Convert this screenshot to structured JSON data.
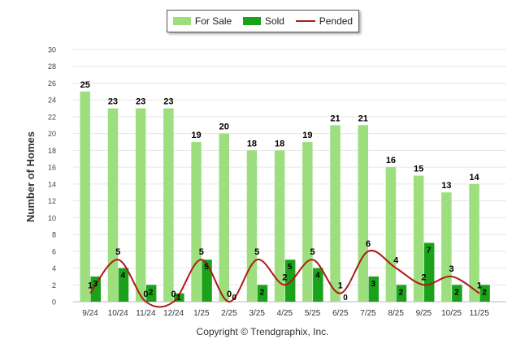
{
  "chart_data": {
    "type": "bar",
    "categories": [
      "9/24",
      "10/24",
      "11/24",
      "12/24",
      "1/25",
      "2/25",
      "3/25",
      "4/25",
      "5/25",
      "6/25",
      "7/25",
      "8/25",
      "9/25",
      "10/25",
      "11/25"
    ],
    "series": [
      {
        "name": "For Sale",
        "type": "bar",
        "color": "#9ddf7e",
        "values": [
          25,
          23,
          23,
          23,
          19,
          20,
          18,
          18,
          19,
          21,
          21,
          16,
          15,
          13,
          14
        ]
      },
      {
        "name": "Sold",
        "type": "bar",
        "color": "#1aa31a",
        "values": [
          3,
          4,
          2,
          1,
          5,
          0,
          2,
          5,
          4,
          0,
          3,
          2,
          7,
          2,
          2
        ]
      },
      {
        "name": "Pended",
        "type": "line",
        "color": "#b01818",
        "values": [
          1,
          5,
          0,
          0,
          5,
          0,
          5,
          2,
          5,
          1,
          6,
          4,
          2,
          3,
          1
        ]
      }
    ],
    "ylabel": "Number of Homes",
    "ylim": [
      0,
      30
    ],
    "yticks": [
      0,
      2,
      4,
      6,
      8,
      10,
      12,
      14,
      16,
      18,
      20,
      22,
      24,
      26,
      28,
      30
    ],
    "grid": true,
    "legend_position": "top-center"
  },
  "footer": "Copyright © Trendgraphix, Inc."
}
